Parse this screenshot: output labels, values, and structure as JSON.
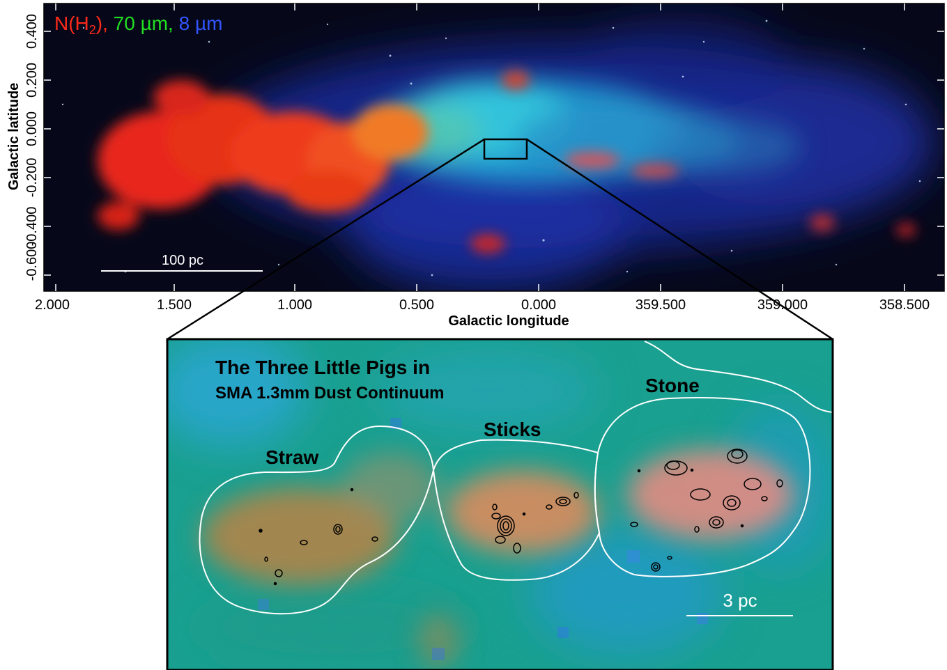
{
  "legend": {
    "nh2": "N(H",
    "nh2_sub": "2",
    "nh2_close": "),",
    "um70": " 70 µm,",
    "um8": " 8 µm",
    "colors": {
      "nh2": "#ff2a1a",
      "um70": "#22dd22",
      "um8": "#3355ff"
    }
  },
  "top_panel": {
    "ylabel": "Galactic latitude",
    "xlabel": "Galactic longitude",
    "y_ticks": [
      "0.400",
      "0.200",
      "0.000",
      "-0.200",
      "-0.400",
      "-0.600"
    ],
    "x_ticks": [
      "2.000",
      "1.500",
      "1.000",
      "0.500",
      "0.000",
      "359.500",
      "359.000",
      "358.500"
    ],
    "scale_bar": "100 pc"
  },
  "inset": {
    "title_line1": "The Three Little Pigs in",
    "title_line2": "SMA 1.3mm Dust Continuum",
    "labels": {
      "straw": "Straw",
      "sticks": "Sticks",
      "stone": "Stone"
    },
    "scale_bar": "3 pc"
  }
}
